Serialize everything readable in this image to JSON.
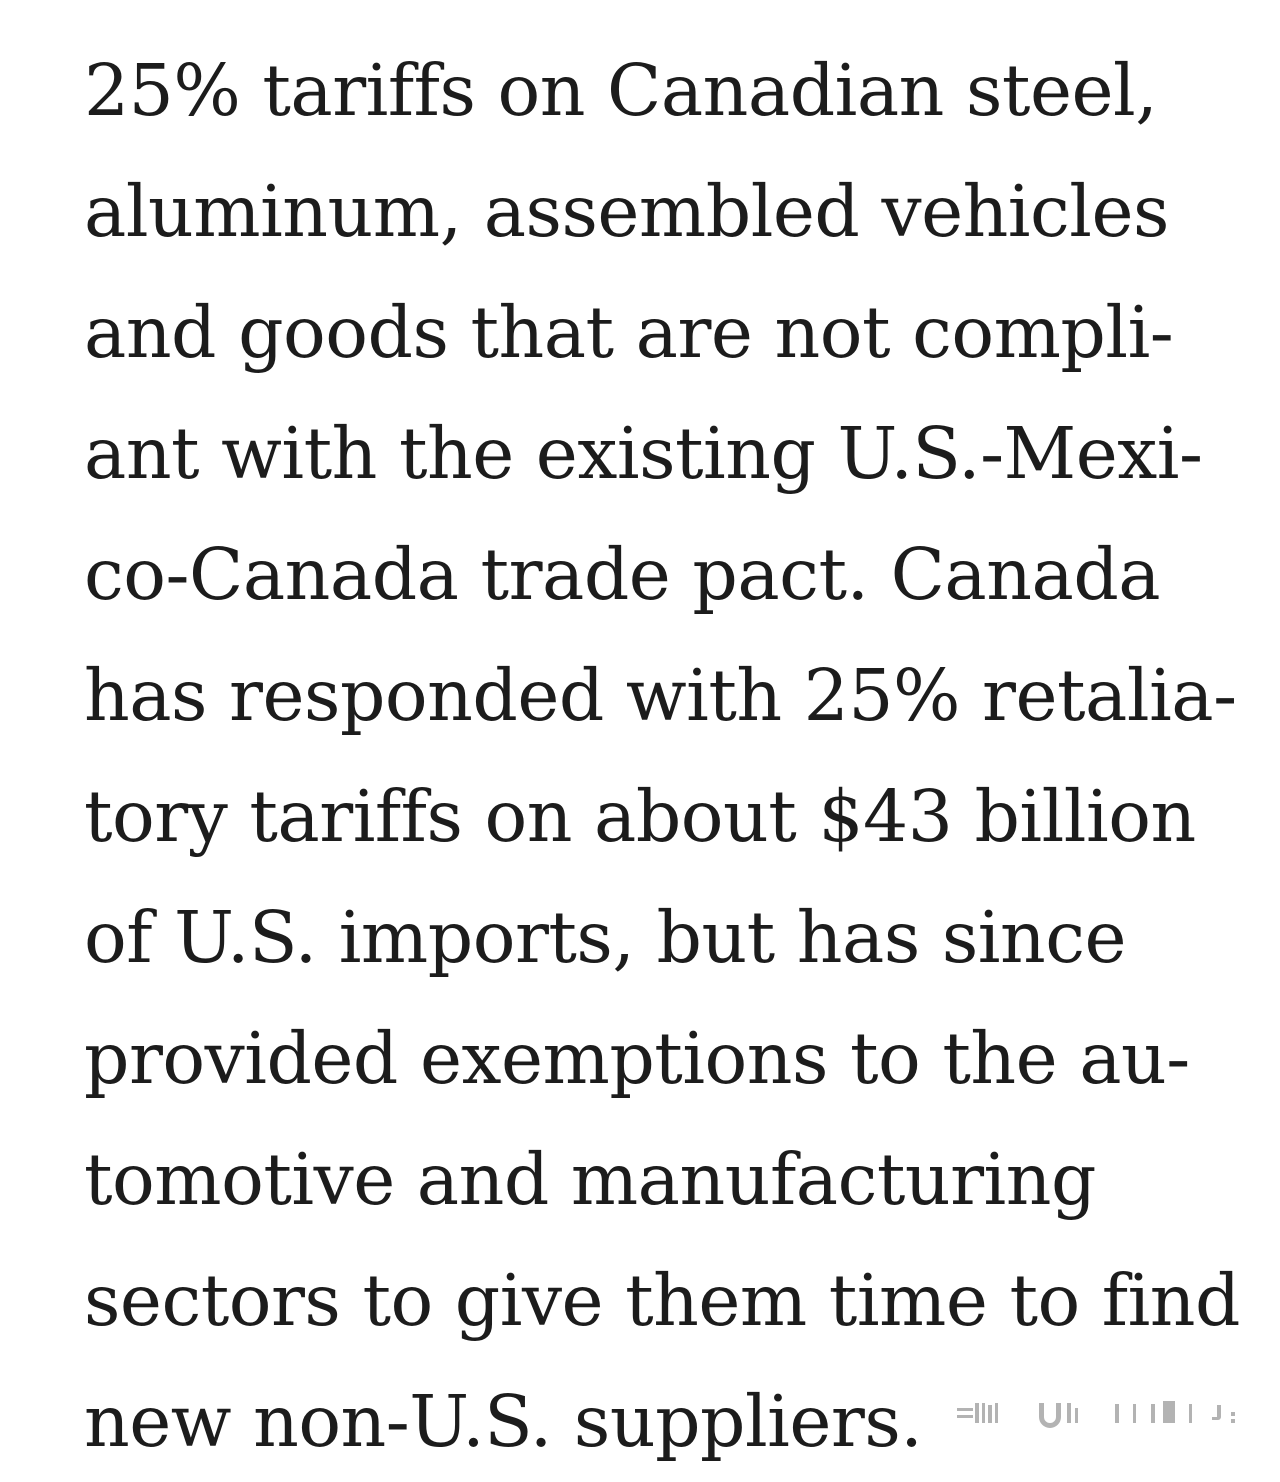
{
  "article": {
    "lines": [
      "25% tariffs on Canadian steel,",
      "aluminum, assembled vehicles",
      "and goods that are not compli-",
      "ant with the existing U.S.-Mexi-",
      "co-Canada trade pact. Canada",
      "has responded with 25% retalia-",
      "tory tariffs on about $43 billion",
      "of U.S. imports, but has since",
      "provided exemptions to the au-",
      "tomotive and manufacturing",
      "sectors to give them time to find",
      "new non-U.S. suppliers."
    ]
  },
  "watermark": {
    "icon": "faded-watermark-logo",
    "color": "#9a9a9a"
  }
}
